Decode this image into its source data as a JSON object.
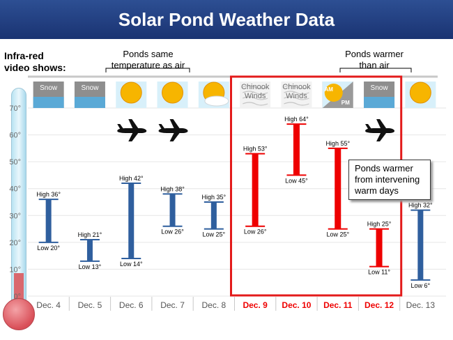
{
  "title": "Solar Pond Weather Data",
  "left_label": [
    "Infra-red",
    "video shows:"
  ],
  "callout_same": [
    "Ponds same",
    "temperature as air"
  ],
  "callout_warmer": [
    "Ponds warmer",
    "than air"
  ],
  "callout_box": [
    "Ponds warmer",
    "from intervening",
    "warm days"
  ],
  "colors": {
    "normal_bar": "#2f5f9e",
    "highlight_bar": "#ee0000",
    "highlight_text": "#ee0000",
    "frame": "#e31b1b"
  },
  "chart_data": {
    "type": "bar",
    "subtype": "range",
    "yaxis_ticks": [
      "0°",
      "10°",
      "20°",
      "30°",
      "40°",
      "50°",
      "60°",
      "70°"
    ],
    "ylim": [
      0,
      70
    ],
    "categories": [
      "Dec. 4",
      "Dec. 5",
      "Dec. 6",
      "Dec. 7",
      "Dec. 8",
      "Dec. 9",
      "Dec. 10",
      "Dec. 11",
      "Dec. 12",
      "Dec. 13"
    ],
    "highs": [
      36,
      21,
      42,
      38,
      35,
      53,
      64,
      55,
      25,
      32
    ],
    "lows": [
      20,
      13,
      14,
      26,
      25,
      26,
      45,
      25,
      11,
      6
    ],
    "high_labels": [
      "High 36°",
      "High 21°",
      "High 42°",
      "High 38°",
      "High 35°",
      "High 53°",
      "High 64°",
      "High 55°",
      "High 25°",
      "High 32°"
    ],
    "low_labels": [
      "Low 20°",
      "Low 13°",
      "Low 14°",
      "Low 26°",
      "Low 25°",
      "Low 26°",
      "Low 45°",
      "Low 25°",
      "Low 11°",
      "Low 6°"
    ],
    "highlighted_categories": [
      "Dec. 9",
      "Dec. 10",
      "Dec. 11",
      "Dec. 12"
    ],
    "weather": [
      "snow",
      "snow",
      "sun",
      "sun",
      "sun-cloud",
      "chinook",
      "chinook",
      "am-pm",
      "snow",
      "sun"
    ],
    "weather_text": [
      "Snow",
      "Snow",
      "",
      "",
      "",
      "Chinook Winds",
      "Chinook Winds",
      "AM PM",
      "Snow",
      ""
    ],
    "flights": [
      "Dec. 6",
      "Dec. 7",
      "Dec. 12"
    ]
  }
}
